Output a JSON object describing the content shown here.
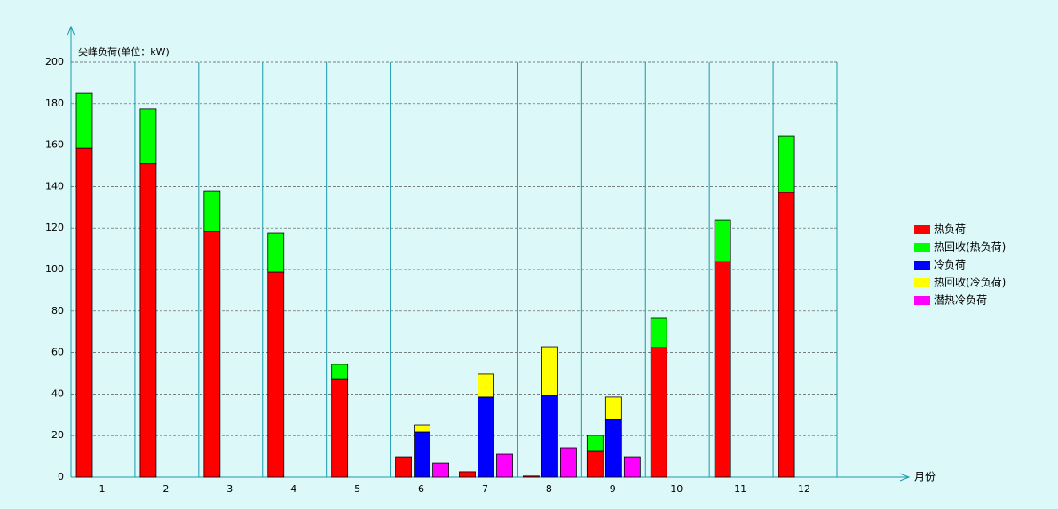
{
  "chart_data": {
    "type": "grouped-stacked-bar",
    "y_label": "尖峰负荷(单位：kW)",
    "x_label": "月份",
    "categories": [
      "1",
      "2",
      "3",
      "4",
      "5",
      "6",
      "7",
      "8",
      "9",
      "10",
      "11",
      "12"
    ],
    "ylim": [
      0,
      200
    ],
    "yticks": [
      0,
      20,
      40,
      60,
      80,
      100,
      120,
      140,
      160,
      180,
      200
    ],
    "grid": true,
    "legend": "right",
    "series": [
      {
        "name": "热负荷",
        "color": "#ff0000",
        "stack": 0,
        "values": [
          158.5,
          151,
          118.4,
          98.7,
          47.4,
          9.8,
          2.6,
          0.5,
          12.4,
          62.4,
          103.8,
          137.2
        ]
      },
      {
        "name": "热回收(热负荷)",
        "color": "#00ff00",
        "stack": 0,
        "values": [
          26.5,
          26.4,
          19.6,
          18.8,
          6.9,
          0,
          0,
          0,
          7.7,
          14.1,
          20.1,
          27.3
        ]
      },
      {
        "name": "冷负荷",
        "color": "#0000ff",
        "stack": 1,
        "values": [
          0,
          0,
          0,
          0,
          0,
          21.8,
          38.5,
          39.3,
          27.8,
          0,
          0,
          0
        ]
      },
      {
        "name": "热回收(冷负荷)",
        "color": "#ffff00",
        "stack": 1,
        "values": [
          0,
          0,
          0,
          0,
          0,
          3.4,
          11.1,
          23.5,
          10.7,
          0,
          0,
          0
        ]
      },
      {
        "name": "潜热冷负荷",
        "color": "#ff00ff",
        "stack": 2,
        "values": [
          0,
          0,
          0,
          0,
          0,
          6.8,
          11.1,
          14.1,
          9.8,
          0,
          0,
          0
        ]
      }
    ]
  }
}
